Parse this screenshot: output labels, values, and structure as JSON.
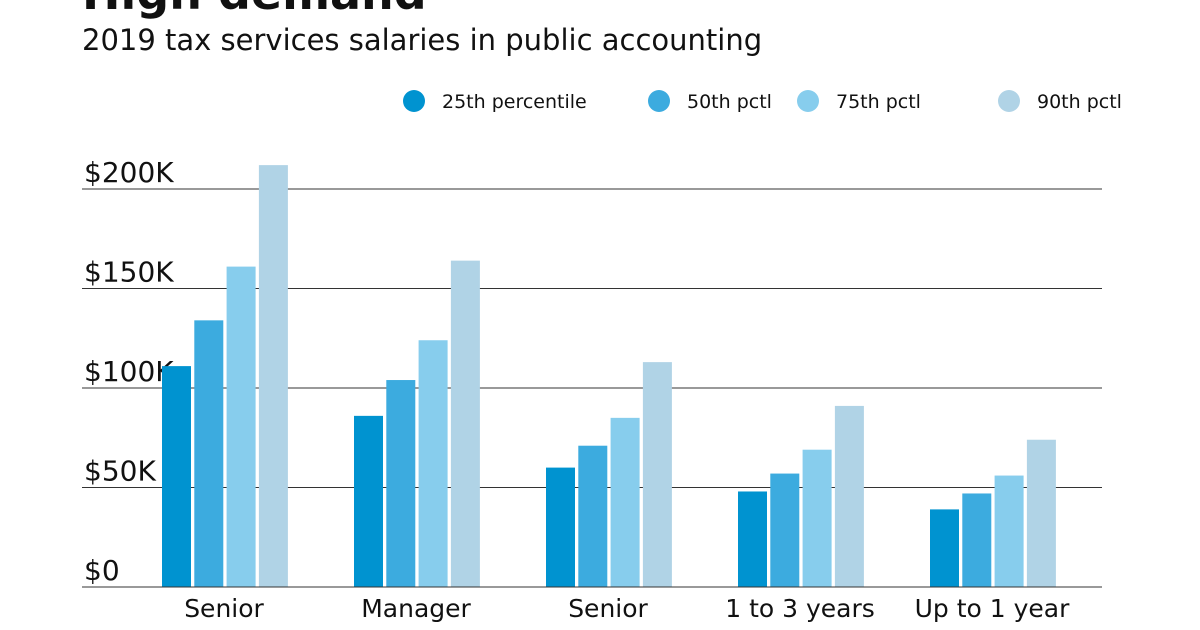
{
  "chart_data": {
    "type": "bar",
    "title": "High demand",
    "subtitle": "2019 tax services salaries in public accounting",
    "categories": [
      "Senior",
      "Manager",
      "Senior",
      "1 to 3 years",
      "Up to 1 year"
    ],
    "series": [
      {
        "name": "25th percentile",
        "color": "#0093d0",
        "values": [
          111,
          86,
          60,
          48,
          39
        ]
      },
      {
        "name": "50th pctl",
        "color": "#3cabdf",
        "values": [
          134,
          104,
          71,
          57,
          47
        ]
      },
      {
        "name": "75th pctl",
        "color": "#87cded",
        "values": [
          161,
          124,
          85,
          69,
          56
        ]
      },
      {
        "name": "90th pctl",
        "color": "#b0d3e6",
        "values": [
          212,
          164,
          113,
          91,
          74
        ]
      }
    ],
    "unit": "thousands of dollars",
    "yticks": [
      0,
      50,
      100,
      150,
      200
    ],
    "ytick_labels": [
      "$0",
      "$50K",
      "$100K",
      "$150K",
      "$200K"
    ],
    "ylim": [
      0,
      200
    ],
    "grid": true,
    "legend_position": "top-right",
    "xlabel": "",
    "ylabel": ""
  }
}
